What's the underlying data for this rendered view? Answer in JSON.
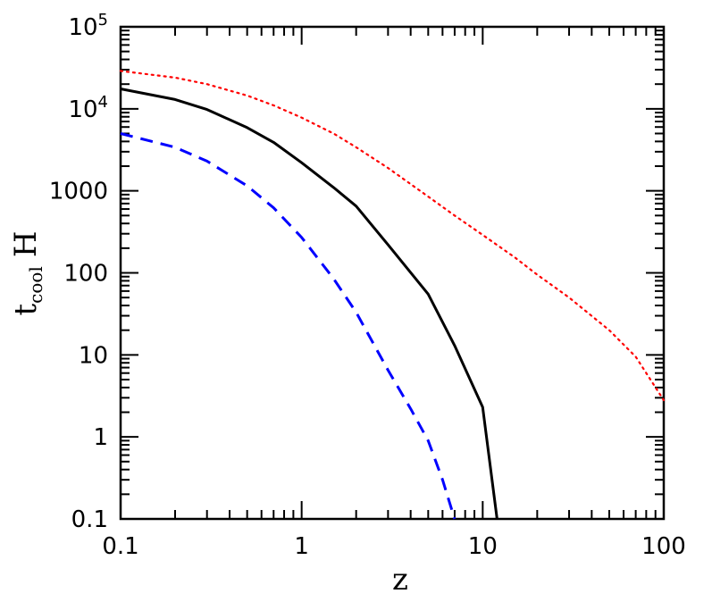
{
  "chart_data": {
    "type": "line",
    "xscale": "log",
    "yscale": "log",
    "xlim": [
      0.1,
      100
    ],
    "ylim": [
      0.1,
      100000
    ],
    "xlabel": "z",
    "ylabel": {
      "main": "t",
      "sub": "cool",
      "suffix": "H"
    },
    "x_ticks": [
      {
        "value": 0.1,
        "label": "0.1"
      },
      {
        "value": 1,
        "label": "1"
      },
      {
        "value": 10,
        "label": "10"
      },
      {
        "value": 100,
        "label": "100"
      }
    ],
    "y_ticks": [
      {
        "value": 0.1,
        "label": "0.1"
      },
      {
        "value": 1,
        "label": "1"
      },
      {
        "value": 10,
        "label": "10"
      },
      {
        "value": 100,
        "label": "100"
      },
      {
        "value": 1000,
        "label": "1000"
      },
      {
        "value": 10000,
        "label": "10",
        "sup": "4"
      },
      {
        "value": 100000,
        "label": "10",
        "sup": "5"
      }
    ],
    "grid": false,
    "legend": "none",
    "series": [
      {
        "style": "dotted",
        "color": "#ff0000",
        "x": [
          0.1,
          0.2,
          0.3,
          0.5,
          0.7,
          1,
          1.5,
          2,
          3,
          5,
          7,
          10,
          15,
          20,
          30,
          50,
          70,
          100
        ],
        "y": [
          29000,
          24000,
          20000,
          14500,
          11000,
          7800,
          5000,
          3400,
          1900,
          850,
          500,
          290,
          155,
          95,
          50,
          20,
          9.5,
          2.8
        ]
      },
      {
        "style": "solid",
        "color": "#000000",
        "x": [
          0.1,
          0.2,
          0.3,
          0.5,
          0.7,
          1,
          1.5,
          2,
          3,
          5,
          7,
          10,
          12
        ],
        "y": [
          17500,
          13000,
          9800,
          5900,
          3900,
          2200,
          1100,
          650,
          220,
          55,
          13,
          2.3,
          0.1
        ]
      },
      {
        "style": "dashed",
        "color": "#0000ff",
        "x": [
          0.1,
          0.2,
          0.3,
          0.5,
          0.7,
          1,
          1.5,
          2,
          3,
          4,
          5,
          6,
          7
        ],
        "y": [
          5000,
          3400,
          2300,
          1150,
          620,
          270,
          85,
          33,
          6.5,
          2.2,
          0.9,
          0.3,
          0.1
        ]
      }
    ]
  }
}
